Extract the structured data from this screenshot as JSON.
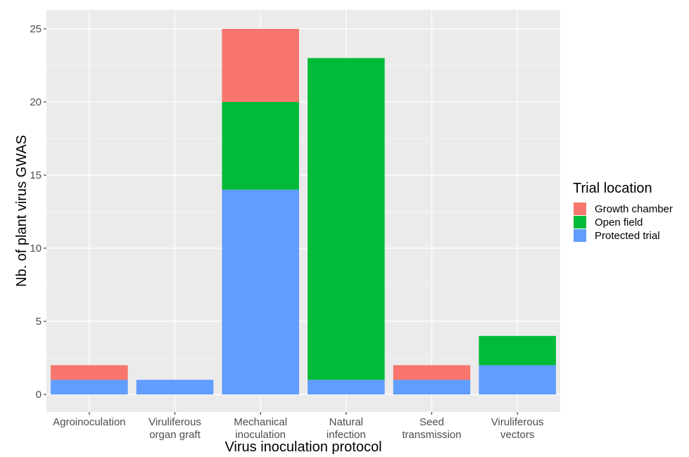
{
  "chart_data": {
    "type": "bar",
    "stacked": true,
    "xlabel": "Virus inoculation protocol",
    "ylabel": "Nb. of plant virus GWAS",
    "ylim": [
      0,
      25
    ],
    "yticks": [
      0,
      5,
      10,
      15,
      20,
      25
    ],
    "grid": true,
    "legend_position": "right",
    "legend_title": "Trial location",
    "categories": [
      [
        "Agroinoculation"
      ],
      [
        "Viruliferous",
        "organ graft"
      ],
      [
        "Mechanical",
        "inoculation"
      ],
      [
        "Natural",
        "infection"
      ],
      [
        "Seed",
        "transmission"
      ],
      [
        "Viruliferous",
        "vectors"
      ]
    ],
    "series": [
      {
        "name": "Protected trial",
        "color": "#619CFF",
        "values": [
          1,
          1,
          14,
          1,
          1,
          2
        ]
      },
      {
        "name": "Open field",
        "color": "#00BA38",
        "values": [
          0,
          0,
          6,
          22,
          0,
          2
        ]
      },
      {
        "name": "Growth chamber",
        "color": "#F8766D",
        "values": [
          1,
          0,
          5,
          0,
          1,
          0
        ]
      }
    ],
    "legend_order": [
      "Growth chamber",
      "Open field",
      "Protected trial"
    ]
  }
}
